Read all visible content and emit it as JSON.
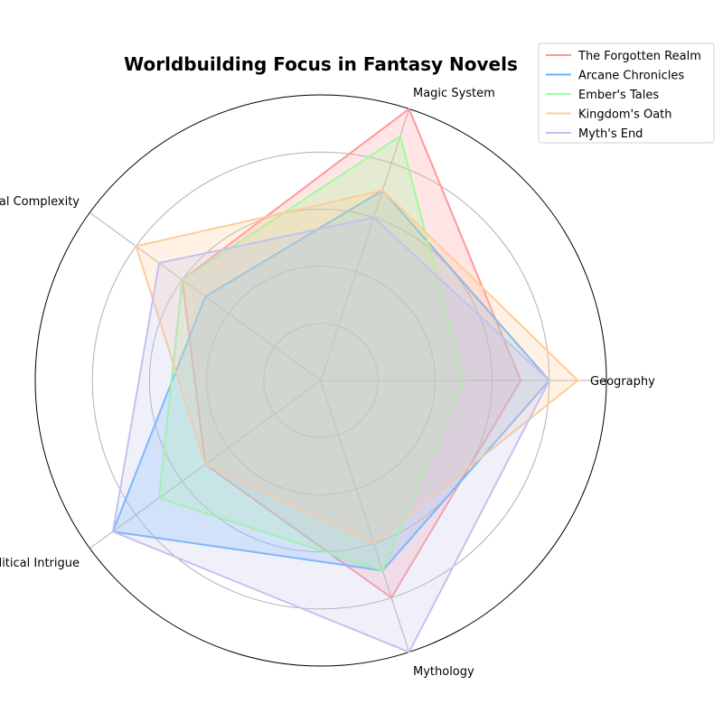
{
  "chart_data": {
    "type": "radar",
    "title": "Worldbuilding Focus in Fantasy Novels",
    "categories": [
      "Geography",
      "Magic System",
      "Cultural Complexity",
      "Political Intrigue",
      "Mythology"
    ],
    "rmax": 10,
    "grid": true,
    "legend_position": "top-right",
    "series": [
      {
        "name": "The Forgotten Realm",
        "values": [
          7,
          10,
          6,
          5,
          8
        ],
        "color": "#ff9999"
      },
      {
        "name": "Arcane Chronicles",
        "values": [
          8,
          7,
          5,
          9,
          7
        ],
        "color": "#66b3ff"
      },
      {
        "name": "Ember's Tales",
        "values": [
          5,
          9,
          6,
          7,
          7
        ],
        "color": "#99ff99"
      },
      {
        "name": "Kingdom's Oath",
        "values": [
          9,
          7,
          8,
          5,
          6
        ],
        "color": "#ffcc99"
      },
      {
        "name": "Myth's End",
        "values": [
          8,
          6,
          7,
          9,
          10
        ],
        "color": "#c2c2f0"
      }
    ]
  }
}
